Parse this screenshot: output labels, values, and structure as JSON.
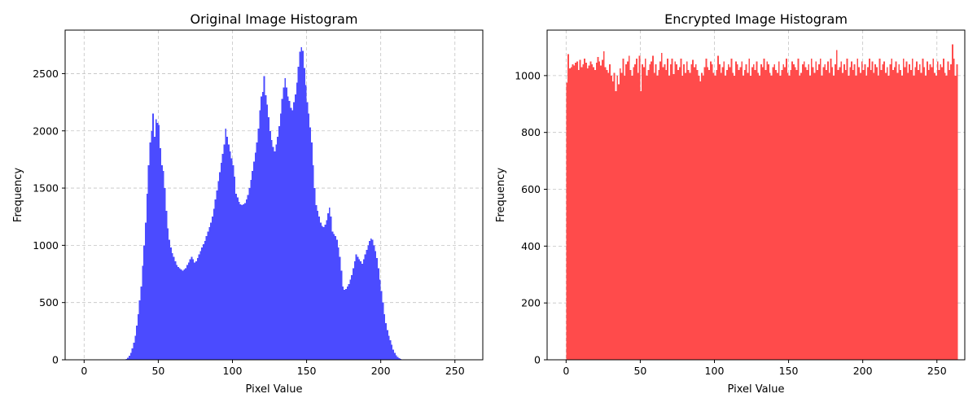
{
  "chart_data": [
    {
      "type": "bar",
      "title": "Original Image Histogram",
      "xlabel": "Pixel Value",
      "ylabel": "Frequency",
      "xlim": [
        -12.8,
        268.8
      ],
      "ylim": [
        0,
        2880
      ],
      "xticks": [
        0,
        50,
        100,
        150,
        200,
        250
      ],
      "yticks": [
        0,
        500,
        1000,
        1500,
        2000,
        2500
      ],
      "grid": true,
      "color": "#4b4bff",
      "bin_width": 1,
      "x_start": 0,
      "values": [
        0,
        0,
        0,
        0,
        0,
        0,
        0,
        0,
        0,
        0,
        0,
        0,
        0,
        0,
        0,
        0,
        0,
        0,
        0,
        0,
        0,
        0,
        0,
        0,
        0,
        0,
        0,
        2,
        8,
        18,
        35,
        60,
        100,
        150,
        210,
        300,
        400,
        520,
        640,
        820,
        1000,
        1200,
        1450,
        1700,
        1900,
        2000,
        2150,
        1950,
        2100,
        2070,
        2050,
        1850,
        1700,
        1650,
        1500,
        1300,
        1150,
        1050,
        980,
        930,
        900,
        860,
        830,
        810,
        800,
        790,
        780,
        790,
        800,
        830,
        850,
        880,
        900,
        880,
        850,
        860,
        890,
        920,
        950,
        980,
        1010,
        1040,
        1080,
        1120,
        1160,
        1200,
        1250,
        1320,
        1400,
        1480,
        1560,
        1640,
        1720,
        1800,
        1880,
        2020,
        1950,
        1880,
        1820,
        1760,
        1700,
        1600,
        1450,
        1420,
        1380,
        1360,
        1350,
        1360,
        1370,
        1400,
        1440,
        1500,
        1570,
        1650,
        1730,
        1810,
        1900,
        2020,
        2180,
        2300,
        2340,
        2480,
        2310,
        2230,
        2120,
        2000,
        1920,
        1860,
        1820,
        1880,
        1950,
        2040,
        2150,
        2280,
        2380,
        2460,
        2380,
        2300,
        2260,
        2200,
        2180,
        2250,
        2320,
        2420,
        2560,
        2690,
        2730,
        2700,
        2550,
        2400,
        2250,
        2150,
        2030,
        1900,
        1700,
        1500,
        1350,
        1300,
        1250,
        1200,
        1170,
        1160,
        1180,
        1220,
        1280,
        1330,
        1250,
        1120,
        1100,
        1080,
        1050,
        980,
        900,
        780,
        640,
        610,
        620,
        640,
        660,
        700,
        740,
        800,
        860,
        920,
        900,
        880,
        860,
        840,
        880,
        920,
        960,
        1000,
        1040,
        1060,
        1050,
        1000,
        950,
        890,
        800,
        700,
        600,
        500,
        400,
        320,
        260,
        210,
        170,
        130,
        90,
        60,
        40,
        25,
        15,
        8,
        5,
        3,
        2,
        1,
        1,
        0,
        0,
        0,
        0,
        0,
        0,
        0,
        0,
        0,
        0,
        0,
        0,
        0,
        0,
        0,
        0,
        0,
        0,
        0,
        0,
        0,
        0,
        0,
        0,
        0,
        0,
        0,
        0,
        0
      ]
    },
    {
      "type": "bar",
      "title": "Encrypted Image Histogram",
      "xlabel": "Pixel Value",
      "ylabel": "Frequency",
      "xlim": [
        -12.8,
        268.8
      ],
      "ylim": [
        0,
        1160
      ],
      "xticks": [
        0,
        50,
        100,
        150,
        200,
        250
      ],
      "yticks": [
        0,
        200,
        400,
        600,
        800,
        1000
      ],
      "grid": true,
      "color": "#ff4b4b",
      "bin_width": 1,
      "x_start": 0,
      "values": [
        975,
        1075,
        1025,
        1030,
        1040,
        1035,
        1045,
        1050,
        1020,
        1055,
        1030,
        1040,
        1060,
        1045,
        1025,
        1035,
        1050,
        1040,
        1030,
        1020,
        1045,
        1065,
        1050,
        1035,
        1055,
        1085,
        1030,
        1020,
        1010,
        1040,
        1000,
        980,
        1010,
        945,
        1000,
        970,
        1025,
        1010,
        1060,
        1000,
        1040,
        1050,
        1070,
        1020,
        1000,
        1030,
        1040,
        1060,
        1010,
        1070,
        945,
        1040,
        1030,
        1060,
        1000,
        1020,
        1040,
        1050,
        1070,
        1010,
        1040,
        1000,
        1020,
        1050,
        1080,
        1030,
        1040,
        1020,
        1060,
        1000,
        1040,
        1060,
        1005,
        1050,
        1040,
        1020,
        1030,
        1060,
        1000,
        1040,
        1010,
        1050,
        1020,
        1010,
        1040,
        1055,
        1030,
        1040,
        1020,
        1000,
        980,
        1010,
        1000,
        1030,
        1060,
        1030,
        1020,
        1050,
        1040,
        1010,
        1000,
        1020,
        1070,
        1040,
        1010,
        1030,
        1050,
        1000,
        1020,
        1040,
        1030,
        1060,
        1010,
        1000,
        1050,
        1040,
        1020,
        1030,
        1050,
        1000,
        1020,
        1040,
        1010,
        1060,
        1000,
        1030,
        1040,
        1020,
        1050,
        1010,
        1000,
        1040,
        1030,
        1060,
        1020,
        1050,
        1040,
        1010,
        1000,
        1030,
        1040,
        1020,
        1010,
        1050,
        1000,
        1020,
        1040,
        1030,
        1060,
        1010,
        1000,
        1020,
        1050,
        1040,
        1030,
        1020,
        1060,
        1000,
        1010,
        1040,
        1050,
        1030,
        1020,
        1040,
        1000,
        1060,
        1030,
        1010,
        1050,
        1020,
        1040,
        1060,
        1000,
        1030,
        1040,
        1020,
        1050,
        1010,
        1060,
        1030,
        1000,
        1040,
        1090,
        1020,
        1030,
        1050,
        1010,
        1040,
        1020,
        1060,
        1000,
        1030,
        1050,
        1020,
        1040,
        1000,
        1060,
        1030,
        1010,
        1050,
        1020,
        1040,
        1000,
        1030,
        1060,
        1020,
        1050,
        1010,
        1040,
        1030,
        1000,
        1060,
        1020,
        1040,
        1050,
        1010,
        1030,
        1000,
        1040,
        1060,
        1020,
        1030,
        1050,
        1010,
        1040,
        1020,
        1000,
        1060,
        1030,
        1050,
        1010,
        1040,
        1020,
        1060,
        1000,
        1030,
        1050,
        1020,
        1040,
        1010,
        1060,
        1030,
        1000,
        1050,
        1020,
        1040,
        1030,
        1060,
        1010,
        1000,
        1050,
        1020,
        1040,
        1030,
        1060,
        1010,
        1000,
        1050,
        1020,
        1040,
        1110,
        1060,
        1000,
        1040
      ]
    }
  ]
}
